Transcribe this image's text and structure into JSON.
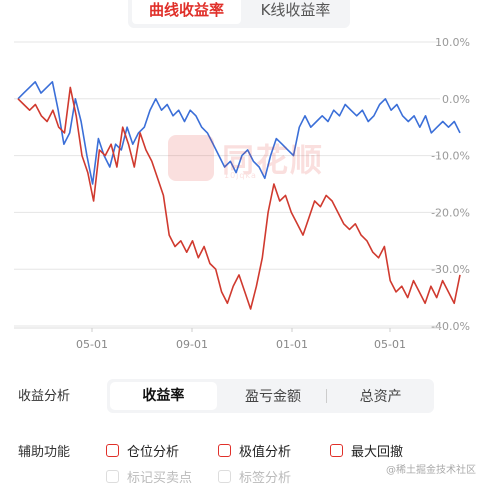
{
  "tabs": [
    {
      "label": "曲线收益率",
      "active": true
    },
    {
      "label": "K线收益率",
      "active": false
    }
  ],
  "watermark": {
    "brand": "同花顺",
    "sub": "10jqka"
  },
  "chart_data": {
    "type": "line",
    "y_ticks": [
      "10.0%",
      "0.0%",
      "-10.0%",
      "-20.0%",
      "-30.0%",
      "-40.0%"
    ],
    "x_ticks": [
      "05-01",
      "09-01",
      "01-01",
      "05-01"
    ],
    "ylim": [
      -40,
      10
    ],
    "grid": true,
    "series": [
      {
        "color": "#3b6fd8",
        "values": [
          0,
          1,
          2,
          3,
          1,
          2,
          3,
          -2,
          -8,
          -6,
          0,
          -4,
          -10,
          -15,
          -7,
          -10,
          -12,
          -8,
          -9,
          -5,
          -8,
          -6,
          -5,
          -2,
          0,
          -2,
          -1,
          -3,
          -2,
          -4,
          -2,
          -3,
          -5,
          -6,
          -8,
          -10,
          -12,
          -11,
          -13,
          -10,
          -9,
          -11,
          -12,
          -14,
          -10,
          -7,
          -8,
          -9,
          -10,
          -5,
          -3,
          -5,
          -4,
          -3,
          -4,
          -2,
          -3,
          -1,
          -2,
          -3,
          -2,
          -4,
          -3,
          -1,
          0,
          -2,
          -1,
          -3,
          -4,
          -3,
          -5,
          -3,
          -6,
          -5,
          -4,
          -5,
          -4,
          -6
        ]
      },
      {
        "color": "#d03a2f",
        "values": [
          0,
          -1,
          -2,
          -1,
          -3,
          -4,
          -2,
          -5,
          -6,
          2,
          -3,
          -10,
          -13,
          -18,
          -9,
          -10,
          -8,
          -12,
          -5,
          -8,
          -12,
          -6,
          -9,
          -11,
          -14,
          -17,
          -24,
          -26,
          -25,
          -27,
          -25,
          -28,
          -26,
          -29,
          -30,
          -34,
          -36,
          -33,
          -31,
          -34,
          -37,
          -33,
          -28,
          -20,
          -15,
          -18,
          -17,
          -20,
          -22,
          -24,
          -21,
          -18,
          -19,
          -17,
          -18,
          -20,
          -22,
          -23,
          -22,
          -24,
          -25,
          -27,
          -28,
          -26,
          -32,
          -34,
          -33,
          -35,
          -32,
          -34,
          -36,
          -33,
          -35,
          -32,
          -34,
          -36,
          -31
        ]
      }
    ]
  },
  "analysis": {
    "label": "收益分析",
    "tabs": [
      {
        "label": "收益率",
        "active": true
      },
      {
        "label": "盈亏金额",
        "active": false
      },
      {
        "label": "总资产",
        "active": false
      }
    ]
  },
  "aux": {
    "label": "辅助功能",
    "options": [
      {
        "label": "仓位分析",
        "enabled": true
      },
      {
        "label": "极值分析",
        "enabled": true
      },
      {
        "label": "最大回撤",
        "enabled": true
      },
      {
        "label": "标记买卖点",
        "enabled": false
      },
      {
        "label": "标签分析",
        "enabled": false
      }
    ]
  },
  "credit": "@稀土掘金技术社区"
}
